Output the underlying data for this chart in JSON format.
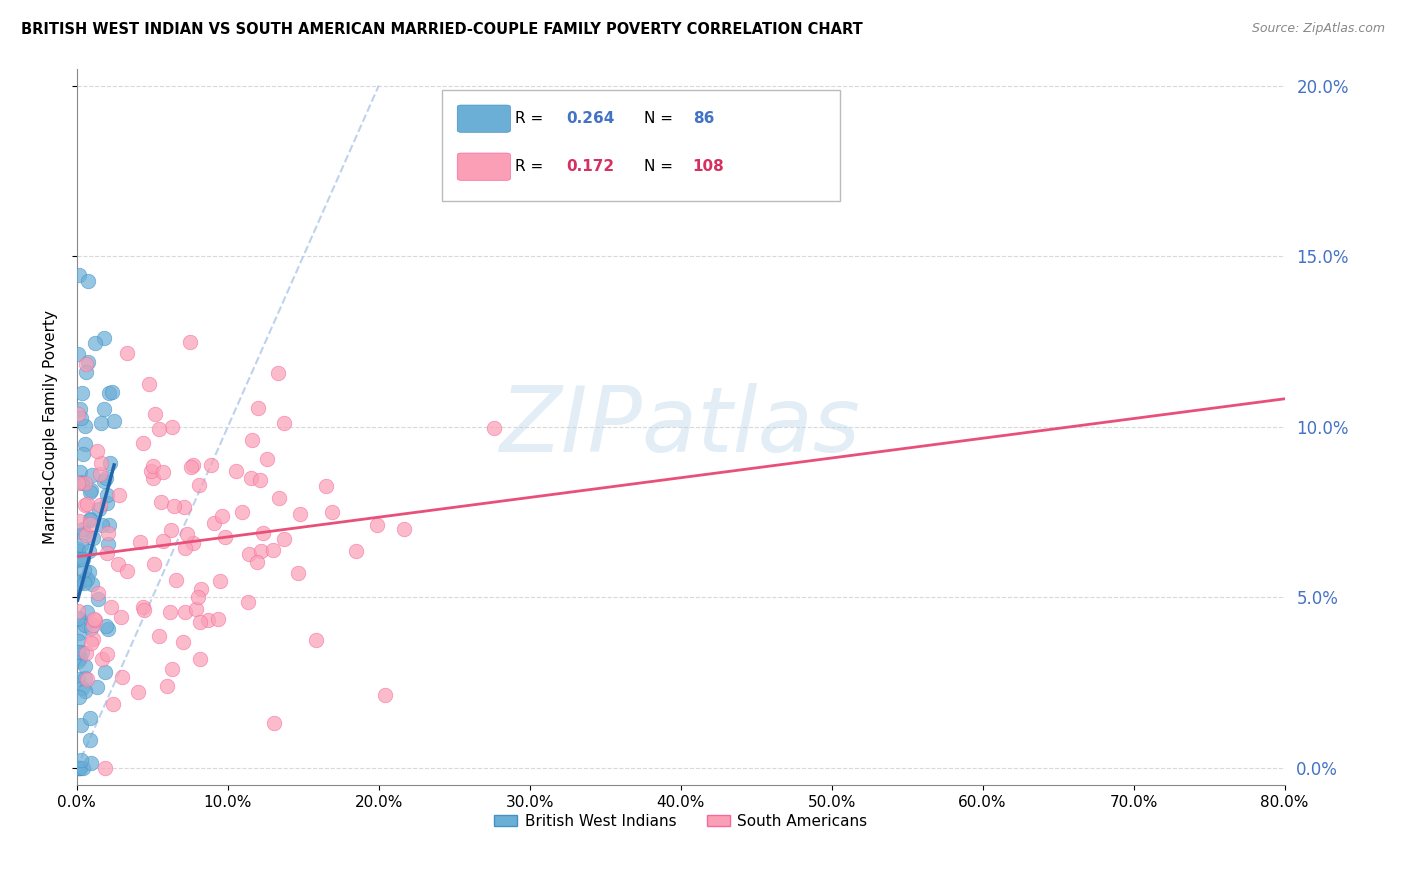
{
  "title": "BRITISH WEST INDIAN VS SOUTH AMERICAN MARRIED-COUPLE FAMILY POVERTY CORRELATION CHART",
  "source": "Source: ZipAtlas.com",
  "ylabel": "Married-Couple Family Poverty",
  "xlim": [
    0,
    0.8
  ],
  "ylim": [
    -0.005,
    0.205
  ],
  "xticks": [
    0.0,
    0.1,
    0.2,
    0.3,
    0.4,
    0.5,
    0.6,
    0.7,
    0.8
  ],
  "yticks": [
    0.0,
    0.05,
    0.1,
    0.15,
    0.2
  ],
  "blue_color": "#6baed6",
  "blue_edge": "#4292c6",
  "pink_color": "#fa9fb5",
  "pink_edge": "#f768a1",
  "blue_trend_color": "#2166ac",
  "pink_trend_color": "#e8507a",
  "ref_line_color": "#aec7e8",
  "blue_R": 0.264,
  "blue_N": 86,
  "pink_R": 0.172,
  "pink_N": 108,
  "legend_label_blue": "British West Indians",
  "legend_label_pink": "South Americans",
  "watermark": "ZIPatlas",
  "blue_R_color": "#4472c4",
  "pink_R_color": "#d63060",
  "right_axis_color": "#4472c4"
}
